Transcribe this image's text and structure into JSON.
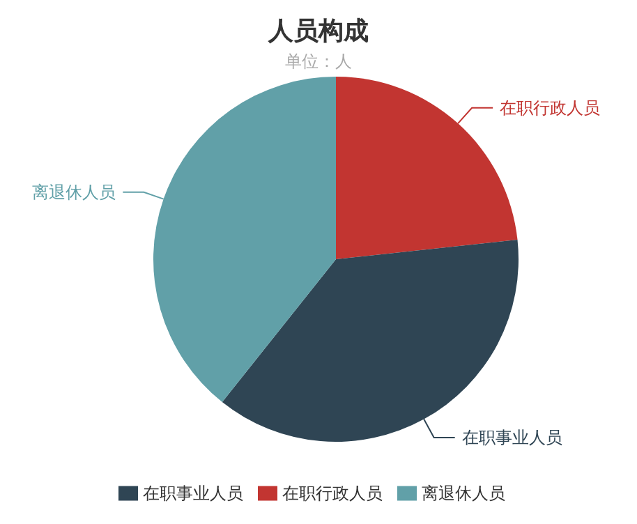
{
  "chart_data": {
    "type": "pie",
    "title": "人员构成",
    "subtitle": "单位：人",
    "categories": [
      "在职行政人员",
      "在职事业人员",
      "离退休人员"
    ],
    "values": [
      23.3,
      37.4,
      39.3
    ],
    "colors": [
      "#c23531",
      "#2f4554",
      "#61a0a8"
    ],
    "legend": "bottom"
  }
}
